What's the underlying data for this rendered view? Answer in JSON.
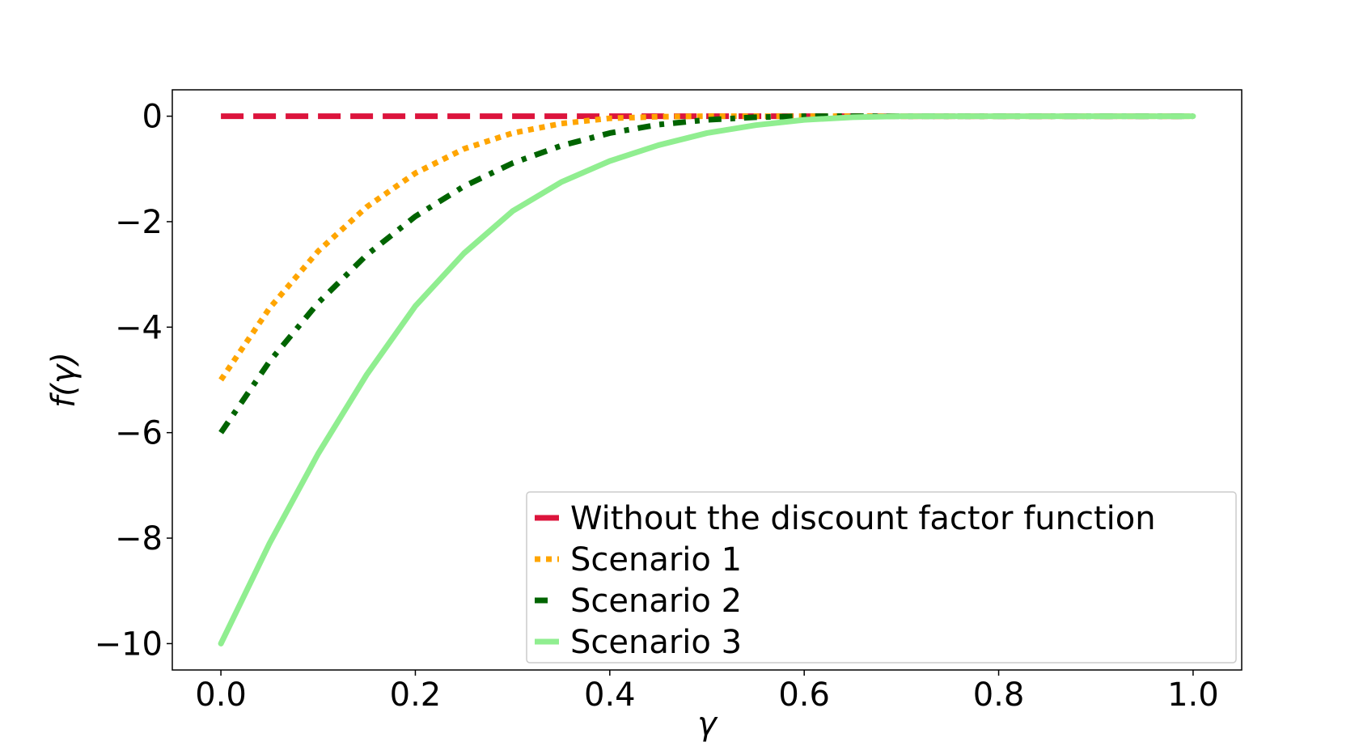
{
  "chart_data": {
    "type": "line",
    "xlabel": "γ",
    "ylabel": "f(γ)",
    "xlim": [
      -0.05,
      1.05
    ],
    "ylim": [
      -10.5,
      0.5
    ],
    "xticks": [
      0.0,
      0.2,
      0.4,
      0.6,
      0.8,
      1.0
    ],
    "xtick_labels": [
      "0.0",
      "0.2",
      "0.4",
      "0.6",
      "0.8",
      "1.0"
    ],
    "yticks": [
      0,
      -2,
      -4,
      -6,
      -8,
      -10
    ],
    "ytick_labels": [
      "0",
      "−2",
      "−4",
      "−6",
      "−8",
      "−10"
    ],
    "grid": false,
    "legend_position": "lower-right",
    "x": [
      0.0,
      0.05,
      0.1,
      0.15,
      0.2,
      0.25,
      0.3,
      0.35,
      0.4,
      0.45,
      0.5,
      0.55,
      0.6,
      0.65,
      0.7,
      0.75,
      0.8,
      0.85,
      0.9,
      0.95,
      1.0
    ],
    "series": [
      {
        "name": "Without the discount factor function",
        "color": "#dc143c",
        "style": "dashed",
        "values": [
          0,
          0,
          0,
          0,
          0,
          0,
          0,
          0,
          0,
          0,
          0,
          0,
          0,
          0,
          0,
          0,
          0,
          0,
          0,
          0,
          0
        ]
      },
      {
        "name": "Scenario 1",
        "color": "#ffa500",
        "style": "dotted",
        "values": [
          -5.0,
          -3.64,
          -2.56,
          -1.72,
          -1.08,
          -0.62,
          -0.32,
          -0.14,
          -0.04,
          -0.01,
          0,
          0,
          0,
          0,
          0,
          0,
          0,
          0,
          0,
          0,
          0
        ]
      },
      {
        "name": "Scenario 2",
        "color": "#006400",
        "style": "dashdot",
        "values": [
          -6.0,
          -4.65,
          -3.54,
          -2.63,
          -1.9,
          -1.33,
          -0.89,
          -0.56,
          -0.32,
          -0.16,
          -0.07,
          -0.02,
          0,
          0,
          0,
          0,
          0,
          0,
          0,
          0,
          0
        ]
      },
      {
        "name": "Scenario 3",
        "color": "#90ee90",
        "style": "solid",
        "values": [
          -10.0,
          -8.1,
          -6.4,
          -4.9,
          -3.6,
          -2.6,
          -1.8,
          -1.25,
          -0.85,
          -0.55,
          -0.32,
          -0.17,
          -0.07,
          -0.02,
          0,
          0,
          0,
          0,
          0,
          0,
          0
        ]
      }
    ]
  }
}
